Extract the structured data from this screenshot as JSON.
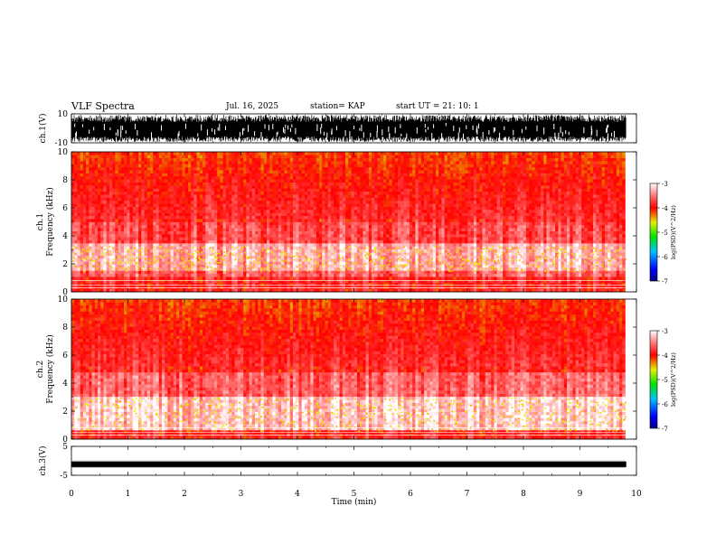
{
  "header": {
    "title": "VLF Spectra",
    "date": "Jul. 16, 2025",
    "station": "station= KAP",
    "start": "start UT = 21: 10: 1"
  },
  "chart_data": [
    {
      "id": "ch1-waveform",
      "type": "line",
      "ylabel": "ch.1(V)",
      "ylim": [
        -10,
        10
      ],
      "yticks": [
        "10",
        "-10"
      ],
      "xlim": [
        0,
        10
      ],
      "description_values": "dense waveform spanning full range"
    },
    {
      "id": "ch1-spectrogram",
      "type": "heatmap",
      "ylabel": "ch.1 Frequency (kHz)",
      "ylim": [
        0,
        10
      ],
      "yticks": [
        "0",
        "2",
        "4",
        "6",
        "8",
        "10"
      ],
      "xlim": [
        0,
        10
      ],
      "data_end_min": 9.8,
      "colorbar": {
        "label": "log(PSD)(V^2/Hz)",
        "ticks": [
          "-3",
          "-4",
          "-5",
          "-6",
          "-7"
        ],
        "range": [
          -7,
          -3
        ]
      },
      "bands": [
        {
          "from_khz": 0.0,
          "to_khz": 1.0,
          "level": -3.9
        },
        {
          "from_khz": 1.0,
          "to_khz": 1.5,
          "level": -3.6
        },
        {
          "from_khz": 1.5,
          "to_khz": 3.3,
          "level": -3.3
        },
        {
          "from_khz": 3.3,
          "to_khz": 5.0,
          "level": -3.7
        },
        {
          "from_khz": 5.0,
          "to_khz": 10.0,
          "level": -3.9
        }
      ]
    },
    {
      "id": "ch2-spectrogram",
      "type": "heatmap",
      "ylabel": "ch.2 Frequency (kHz)",
      "ylim": [
        0,
        10
      ],
      "yticks": [
        "0",
        "2",
        "4",
        "6",
        "8",
        "10"
      ],
      "xlim": [
        0,
        10
      ],
      "data_end_min": 9.8,
      "colorbar": {
        "label": "log(PSD)(V^2/Hz)",
        "ticks": [
          "-3",
          "-4",
          "-5",
          "-6",
          "-7"
        ],
        "range": [
          -7,
          -3
        ]
      },
      "bands": [
        {
          "from_khz": 0.0,
          "to_khz": 0.6,
          "level": -3.9
        },
        {
          "from_khz": 0.6,
          "to_khz": 3.0,
          "level": -3.2
        },
        {
          "from_khz": 3.0,
          "to_khz": 4.6,
          "level": -3.6
        },
        {
          "from_khz": 4.6,
          "to_khz": 10.0,
          "level": -3.9
        }
      ]
    },
    {
      "id": "ch3-waveform",
      "type": "line",
      "ylabel": "ch.3(V)",
      "ylim": [
        -5,
        5
      ],
      "yticks": [
        "5",
        "-5"
      ],
      "xlim": [
        0,
        10
      ],
      "level_value": -1.2
    }
  ],
  "xaxis": {
    "label": "Time (min)",
    "ticks": [
      "0",
      "1",
      "2",
      "3",
      "4",
      "5",
      "6",
      "7",
      "8",
      "9",
      "10"
    ]
  }
}
